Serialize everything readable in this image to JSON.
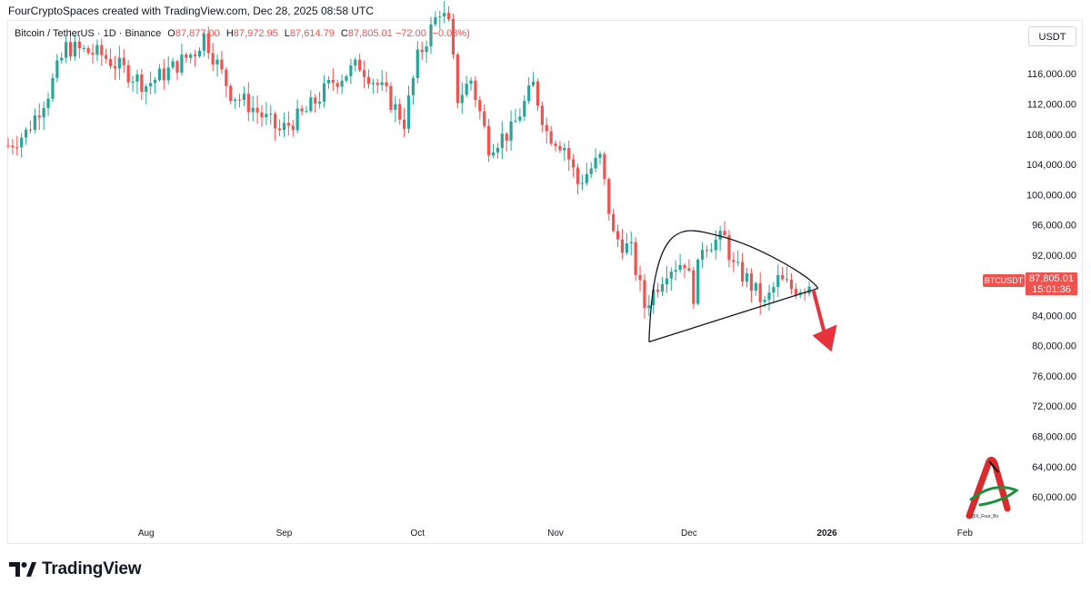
{
  "header": {
    "attribution": "FourCryptoSpaces created with TradingView.com, Dec 28, 2025 08:58 UTC"
  },
  "legend": {
    "symbol": "Bitcoin / TetherUS · 1D · Binance",
    "open_label": "O",
    "open": "87,877.00",
    "high_label": "H",
    "high": "87,972.95",
    "low_label": "L",
    "low": "87,614.79",
    "close_label": "C",
    "close": "87,805.01",
    "change": "−72.00 (−0.08%)"
  },
  "currency_button": "USDT",
  "price_tag": {
    "symbol": "BTCUSDT",
    "price": "87,805.01",
    "countdown": "15:01:36"
  },
  "footer": {
    "brand": "TradingView"
  },
  "watermark_text": "@X_Four_Bv",
  "colors": {
    "up": "#26a69a",
    "down": "#ef5350",
    "axis_text": "#131722",
    "arrow": "#e8333c",
    "line": "#131722"
  },
  "chart_data": {
    "type": "candlestick",
    "ylim": [
      57000,
      123000
    ],
    "y_ticks": [
      60000,
      64000,
      68000,
      72000,
      76000,
      80000,
      84000,
      88000,
      92000,
      96000,
      100000,
      104000,
      108000,
      112000,
      116000
    ],
    "y_tick_labels": [
      "60,000.00",
      "64,000.00",
      "68,000.00",
      "72,000.00",
      "76,000.00",
      "80,000.00",
      "84,000.00",
      "88,000.00",
      "92,000.00",
      "96,000.00",
      "100,000.00",
      "104,000.00",
      "108,000.00",
      "112,000.00",
      "116,000.00"
    ],
    "x_range": [
      "2025-07-01",
      "2026-02-14"
    ],
    "x_ticks": [
      {
        "date": "2025-08-01",
        "label": "Aug",
        "bold": false
      },
      {
        "date": "2025-09-01",
        "label": "Sep",
        "bold": false
      },
      {
        "date": "2025-10-01",
        "label": "Oct",
        "bold": false
      },
      {
        "date": "2025-11-01",
        "label": "Nov",
        "bold": false
      },
      {
        "date": "2025-12-01",
        "label": "Dec",
        "bold": false
      },
      {
        "date": "2026-01-01",
        "label": "2026",
        "bold": true
      },
      {
        "date": "2026-02-01",
        "label": "Feb",
        "bold": false
      }
    ],
    "anchors": [
      [
        "2025-07-01",
        106500
      ],
      [
        "2025-07-05",
        108200
      ],
      [
        "2025-07-10",
        113500
      ],
      [
        "2025-07-14",
        119500
      ],
      [
        "2025-07-22",
        118500
      ],
      [
        "2025-08-01",
        114500
      ],
      [
        "2025-08-07",
        116800
      ],
      [
        "2025-08-12",
        119000
      ],
      [
        "2025-08-14",
        121000
      ],
      [
        "2025-08-20",
        113500
      ],
      [
        "2025-08-25",
        111500
      ],
      [
        "2025-08-31",
        108400
      ],
      [
        "2025-09-06",
        111000
      ],
      [
        "2025-09-12",
        115000
      ],
      [
        "2025-09-18",
        117200
      ],
      [
        "2025-09-24",
        113200
      ],
      [
        "2025-09-28",
        109600
      ],
      [
        "2025-10-01",
        118000
      ],
      [
        "2025-10-06",
        124500
      ],
      [
        "2025-10-08",
        122300
      ],
      [
        "2025-10-10",
        112800
      ],
      [
        "2025-10-13",
        115200
      ],
      [
        "2025-10-17",
        106500
      ],
      [
        "2025-10-22",
        108400
      ],
      [
        "2025-10-27",
        114500
      ],
      [
        "2025-10-30",
        108300
      ],
      [
        "2025-11-03",
        106400
      ],
      [
        "2025-11-06",
        101500
      ],
      [
        "2025-11-11",
        104800
      ],
      [
        "2025-11-14",
        94600
      ],
      [
        "2025-11-18",
        92500
      ],
      [
        "2025-11-21",
        85200
      ],
      [
        "2025-11-26",
        90200
      ],
      [
        "2025-11-30",
        91200
      ],
      [
        "2025-12-02",
        86800
      ],
      [
        "2025-12-04",
        93400
      ],
      [
        "2025-12-09",
        94200
      ],
      [
        "2025-12-11",
        90400
      ],
      [
        "2025-12-14",
        88800
      ],
      [
        "2025-12-18",
        85400
      ],
      [
        "2025-12-21",
        88700
      ],
      [
        "2025-12-24",
        87600
      ],
      [
        "2025-12-28",
        87805
      ]
    ],
    "pattern": {
      "arc_start": [
        "2025-11-22",
        80500
      ],
      "arc_peak": [
        "2025-12-08",
        94500
      ],
      "arc_end": [
        "2025-12-30",
        87600
      ],
      "trendline": [
        [
          "2025-11-22",
          80500
        ],
        [
          "2025-12-30",
          87600
        ]
      ],
      "arrow_from": [
        "2025-12-29",
        87200
      ],
      "arrow_to": [
        "2026-01-02",
        79200
      ]
    }
  }
}
